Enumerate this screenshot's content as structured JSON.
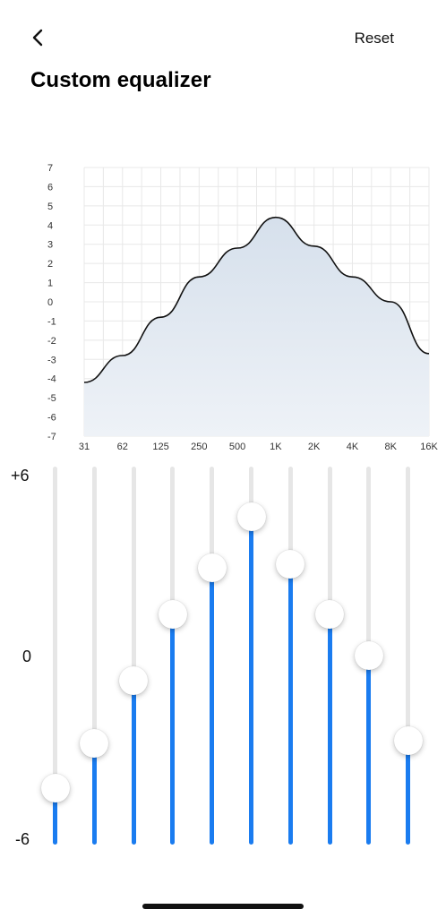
{
  "header": {
    "back_icon": "chevron-left-icon",
    "reset_label": "Reset",
    "title": "Custom equalizer"
  },
  "chart_data": {
    "type": "area",
    "title": "",
    "xlabel": "",
    "ylabel": "",
    "categories": [
      "31",
      "62",
      "125",
      "250",
      "500",
      "1K",
      "2K",
      "4K",
      "8K",
      "16K"
    ],
    "y_ticks": [
      "7",
      "6",
      "5",
      "4",
      "3",
      "2",
      "1",
      "0",
      "-1",
      "-2",
      "-3",
      "-4",
      "-5",
      "-6",
      "-7"
    ],
    "ylim": [
      -7,
      7
    ],
    "series": [
      {
        "values": [
          -4.2,
          -2.8,
          -0.8,
          1.3,
          2.8,
          4.4,
          2.9,
          1.3,
          0,
          -2.7
        ]
      }
    ],
    "grid": true,
    "colors": {
      "line": "#111111",
      "fill_top": "#d6e0ec",
      "fill_bottom": "#eef2f7",
      "grid": "#e8e8e8"
    }
  },
  "sliders": {
    "scale_top": "+6",
    "scale_mid": "0",
    "scale_bottom": "-6",
    "range": [
      -6,
      6
    ],
    "bands": [
      {
        "band": "31",
        "value": -4.2
      },
      {
        "band": "62",
        "value": -2.8
      },
      {
        "band": "125",
        "value": -0.8
      },
      {
        "band": "250",
        "value": 1.3
      },
      {
        "band": "500",
        "value": 2.8
      },
      {
        "band": "1K",
        "value": 4.4
      },
      {
        "band": "2K",
        "value": 2.9
      },
      {
        "band": "4K",
        "value": 1.3
      },
      {
        "band": "8K",
        "value": 0
      },
      {
        "band": "16K",
        "value": -2.7
      }
    ],
    "colors": {
      "track": "#e6e6e6",
      "fill": "#1a7cf0",
      "knob": "#ffffff"
    }
  }
}
